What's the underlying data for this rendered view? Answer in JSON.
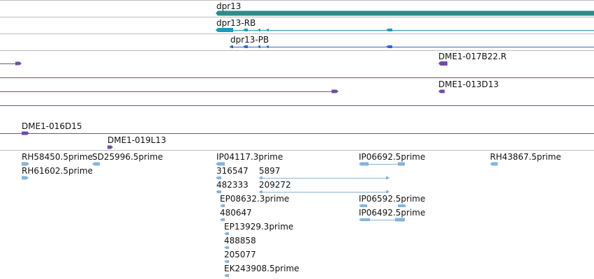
{
  "colors": {
    "gene": "#2e8b8b",
    "transcript_rb": "#1a9cb8",
    "transcript_pb": "#2c68c8",
    "clone": "#6f4ea6",
    "est": "#84b4dc",
    "divider": "#bbbbbb"
  },
  "genes": [
    {
      "label": "dpr13"
    }
  ],
  "transcripts": [
    {
      "label": "dpr13-RB"
    },
    {
      "label": "dpr13-PB"
    }
  ],
  "clones": [
    {
      "label": "DME1-017B22.R"
    },
    {
      "label": "DME1-013D13"
    },
    {
      "label": "DME1-016D15"
    },
    {
      "label": "DME1-019L13"
    }
  ],
  "ests": [
    {
      "label": "RH58450.5prime"
    },
    {
      "label": "SD25996.5prime"
    },
    {
      "label": "IP04117.3prime"
    },
    {
      "label": "IP06692.5prime"
    },
    {
      "label": "RH43867.5prime"
    },
    {
      "label": "RH61602.5prime"
    },
    {
      "label": "316547"
    },
    {
      "label": "5897"
    },
    {
      "label": "482333"
    },
    {
      "label": "209272"
    },
    {
      "label": "EP08632.3prime"
    },
    {
      "label": "IP06592.5prime"
    },
    {
      "label": "480647"
    },
    {
      "label": "IP06492.5prime"
    },
    {
      "label": "EP13929.3prime"
    },
    {
      "label": "488858"
    },
    {
      "label": "205077"
    },
    {
      "label": "EK243908.5prime"
    }
  ]
}
